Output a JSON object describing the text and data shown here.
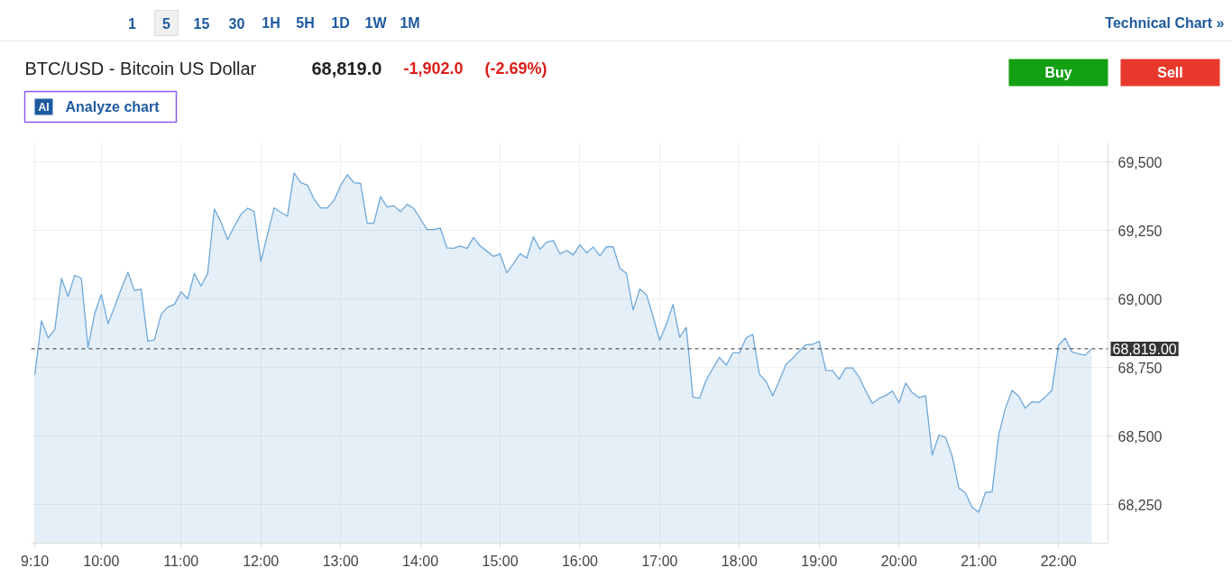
{
  "chart_data": {
    "type": "area",
    "title": "BTC/USD - Bitcoin US Dollar",
    "annotations": [
      "68,819.0",
      "-1,902.0",
      "(-2.69%)",
      "15",
      "30",
      "1H",
      "5H",
      "1D",
      "1W",
      "1M",
      "1",
      "5",
      "Technical Chart »",
      "Buy",
      "Sell",
      "AI",
      "Analyze chart"
    ],
    "x": [
      9.1667,
      9.25,
      9.3333,
      9.4167,
      9.5,
      9.5833,
      9.6667,
      9.75,
      9.8333,
      9.9167,
      10,
      10.0833,
      10.1667,
      10.25,
      10.3333,
      10.4167,
      10.5,
      10.5833,
      10.6667,
      10.75,
      10.8333,
      10.9167,
      11,
      11.0833,
      11.1667,
      11.25,
      11.3333,
      11.4167,
      11.5,
      11.5833,
      11.6667,
      11.75,
      11.8333,
      11.9167,
      12,
      12.0833,
      12.1667,
      12.25,
      12.3333,
      12.4167,
      12.5,
      12.5833,
      12.6667,
      12.75,
      12.8333,
      12.9167,
      13,
      13.0833,
      13.1667,
      13.25,
      13.3333,
      13.4167,
      13.5,
      13.5833,
      13.6667,
      13.75,
      13.8333,
      13.9167,
      14,
      14.0833,
      14.1667,
      14.25,
      14.3333,
      14.4167,
      14.5,
      14.5833,
      14.6667,
      14.75,
      14.8333,
      14.9167,
      15,
      15.0833,
      15.1667,
      15.25,
      15.3333,
      15.4167,
      15.5,
      15.5833,
      15.6667,
      15.75,
      15.8333,
      15.9167,
      16,
      16.0833,
      16.1667,
      16.25,
      16.3333,
      16.4167,
      16.5,
      16.5833,
      16.6667,
      16.75,
      16.8333,
      16.9167,
      17,
      17.0833,
      17.1667,
      17.25,
      17.3333,
      17.4167,
      17.5,
      17.5833,
      17.6667,
      17.75,
      17.8333,
      17.9167,
      18,
      18.0833,
      18.1667,
      18.25,
      18.3333,
      18.4167,
      18.5,
      18.5833,
      18.6667,
      18.75,
      18.8333,
      18.9167,
      19,
      19.0833,
      19.1667,
      19.25,
      19.3333,
      19.4167,
      19.5,
      19.5833,
      19.6667,
      19.75,
      19.8333,
      19.9167,
      20,
      20.0833,
      20.1667,
      20.25,
      20.3333,
      20.4167,
      20.5,
      20.5833,
      20.6667,
      20.75,
      20.8333,
      20.9167,
      21,
      21.0833,
      21.1667,
      21.25,
      21.3333,
      21.4167,
      21.5,
      21.5833,
      21.6667,
      21.75,
      21.8333,
      21.9167,
      22,
      22.0833,
      22.1667,
      22.25,
      22.3333,
      22.4167
    ],
    "series": [
      {
        "color": "#6ea8d8",
        "values": [
          68724,
          68921,
          68859,
          68889,
          69076,
          69010,
          69087,
          69076,
          68824,
          68947,
          69018,
          68911,
          68972,
          69037,
          69098,
          69031,
          69037,
          68846,
          68852,
          68945,
          68971,
          68981,
          69027,
          69001,
          69094,
          69048,
          69094,
          69329,
          69281,
          69217,
          69265,
          69309,
          69332,
          69320,
          69137,
          69236,
          69333,
          69317,
          69303,
          69460,
          69425,
          69416,
          69365,
          69333,
          69333,
          69360,
          69414,
          69454,
          69425,
          69422,
          69277,
          69277,
          69374,
          69336,
          69341,
          69319,
          69346,
          69331,
          69293,
          69254,
          69254,
          69260,
          69187,
          69186,
          69194,
          69185,
          69225,
          69194,
          69175,
          69156,
          69165,
          69096,
          69130,
          69166,
          69150,
          69227,
          69182,
          69208,
          69214,
          69165,
          69178,
          69161,
          69199,
          69169,
          69190,
          69158,
          69191,
          69191,
          69113,
          69094,
          68960,
          69037,
          69017,
          68937,
          68850,
          68908,
          68981,
          68861,
          68897,
          68643,
          68639,
          68705,
          68748,
          68788,
          68759,
          68804,
          68804,
          68859,
          68872,
          68726,
          68700,
          68648,
          68703,
          68762,
          68784,
          68810,
          68834,
          68835,
          68846,
          68740,
          68739,
          68708,
          68749,
          68749,
          68716,
          68665,
          68620,
          68638,
          68649,
          68665,
          68622,
          68694,
          68659,
          68641,
          68648,
          68431,
          68504,
          68496,
          68428,
          68311,
          68293,
          68241,
          68223,
          68295,
          68297,
          68504,
          68602,
          68667,
          68647,
          68602,
          68626,
          68623,
          68643,
          68668,
          68832,
          68858,
          68808,
          68800,
          68796,
          68819
        ]
      }
    ],
    "xlim": [
      9.12,
      22.62
    ],
    "xticks": [
      {
        "value": 9.1667,
        "label": "9:10"
      },
      {
        "value": 10,
        "label": "10:00"
      },
      {
        "value": 11,
        "label": "11:00"
      },
      {
        "value": 12,
        "label": "12:00"
      },
      {
        "value": 13,
        "label": "13:00"
      },
      {
        "value": 14,
        "label": "14:00"
      },
      {
        "value": 15,
        "label": "15:00"
      },
      {
        "value": 16,
        "label": "16:00"
      },
      {
        "value": 17,
        "label": "17:00"
      },
      {
        "value": 18,
        "label": "18:00"
      },
      {
        "value": 19,
        "label": "19:00"
      },
      {
        "value": 20,
        "label": "20:00"
      },
      {
        "value": 21,
        "label": "21:00"
      },
      {
        "value": 22,
        "label": "22:00"
      }
    ],
    "ylim": [
      68110,
      69570
    ],
    "yticks": [
      {
        "value": 68250,
        "label": "68,250"
      },
      {
        "value": 68500,
        "label": "68,500"
      },
      {
        "value": 68750,
        "label": "68,750"
      },
      {
        "value": 69000,
        "label": "69,000"
      },
      {
        "value": 69250,
        "label": "69,250"
      },
      {
        "value": 69500,
        "label": "69,500"
      }
    ],
    "ref_lines": [
      {
        "axis": "y",
        "value": 68819,
        "label": "68,819.00",
        "color": "#333333",
        "line_style": "dashed"
      }
    ],
    "grid": true,
    "marker": "none",
    "line_style": "solid"
  }
}
